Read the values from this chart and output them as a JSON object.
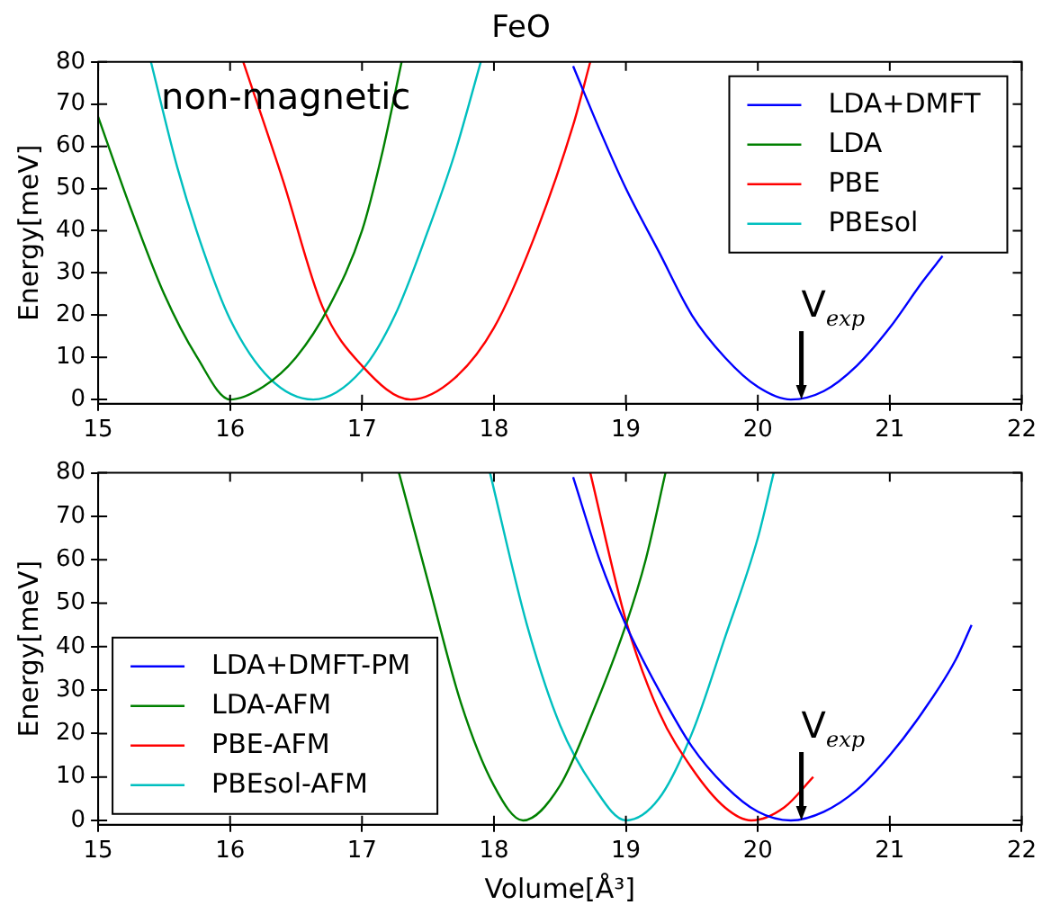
{
  "chart_data": [
    {
      "type": "line",
      "title": "FeO",
      "ylabel": "Energy[meV]",
      "xlim": [
        15,
        22
      ],
      "xticks": [
        15,
        16,
        17,
        18,
        19,
        20,
        21,
        22
      ],
      "ylim": [
        -1,
        80
      ],
      "yticks": [
        0,
        10,
        20,
        30,
        40,
        50,
        60,
        70,
        80
      ],
      "legend": "top right",
      "marker": "none",
      "annotations": [
        "non-magnetic",
        {
          "text": "V$_{exp}$",
          "x": 20.33,
          "y": 0
        }
      ],
      "series": [
        {
          "name": "LDA+DMFT",
          "color": "#0000ff",
          "x": [
            18.6,
            18.8,
            19,
            19.25,
            19.5,
            19.75,
            20,
            20.25,
            20.5,
            20.75,
            21,
            21.25,
            21.4
          ],
          "values": [
            79,
            64,
            50,
            35,
            20,
            10,
            3,
            0,
            2,
            8,
            17,
            28,
            34
          ]
        },
        {
          "name": "LDA",
          "color": "#008000",
          "x": [
            15,
            15.25,
            15.5,
            15.75,
            16,
            16.25,
            16.5,
            16.75,
            17,
            17.15,
            17.3
          ],
          "values": [
            67,
            45,
            25,
            10,
            0,
            3,
            10,
            22,
            40,
            58,
            80
          ]
        },
        {
          "name": "PBE",
          "color": "#ff0000",
          "x": [
            16.1,
            16.4,
            16.7,
            17,
            17.37,
            17.7,
            18,
            18.3,
            18.6,
            18.73
          ],
          "values": [
            80,
            52,
            22,
            8,
            0,
            5,
            17,
            38,
            65,
            80
          ]
        },
        {
          "name": "PBEsol",
          "color": "#00bfbf",
          "x": [
            15.4,
            15.6,
            15.8,
            16,
            16.3,
            16.63,
            17,
            17.25,
            17.5,
            17.7,
            17.9
          ],
          "values": [
            80,
            55,
            35,
            19,
            5,
            0,
            7,
            20,
            40,
            58,
            80
          ]
        }
      ]
    },
    {
      "type": "line",
      "xlabel": "Volume[Å³]",
      "ylabel": "Energy[meV]",
      "xlim": [
        15,
        22
      ],
      "xticks": [
        15,
        16,
        17,
        18,
        19,
        20,
        21,
        22
      ],
      "ylim": [
        -1,
        80
      ],
      "yticks": [
        0,
        10,
        20,
        30,
        40,
        50,
        60,
        70,
        80
      ],
      "legend": "bottom left",
      "marker": "none",
      "annotations": [
        {
          "text": "V$_{exp}$",
          "x": 20.33,
          "y": 0
        }
      ],
      "series": [
        {
          "name": "LDA+DMFT-PM",
          "color": "#0000ff",
          "x": [
            18.6,
            18.8,
            19,
            19.25,
            19.5,
            19.75,
            20,
            20.25,
            20.5,
            20.75,
            21,
            21.25,
            21.5,
            21.62
          ],
          "values": [
            79,
            60,
            45,
            30,
            17,
            8,
            2,
            0,
            2,
            7,
            15,
            25,
            37,
            45
          ]
        },
        {
          "name": "LDA-AFM",
          "color": "#008000",
          "x": [
            17.28,
            17.5,
            17.75,
            18,
            18.22,
            18.5,
            18.75,
            19,
            19.15,
            19.3
          ],
          "values": [
            80,
            55,
            27,
            8,
            0,
            8,
            25,
            45,
            60,
            80
          ]
        },
        {
          "name": "PBE-AFM",
          "color": "#ff0000",
          "x": [
            18.73,
            19,
            19.25,
            19.5,
            19.75,
            19.95,
            20.2,
            20.42
          ],
          "values": [
            80,
            46,
            25,
            12,
            3,
            0,
            3,
            10
          ]
        },
        {
          "name": "PBEsol-AFM",
          "color": "#00bfbf",
          "x": [
            17.97,
            18.25,
            18.5,
            18.75,
            19,
            19.25,
            19.5,
            19.75,
            20,
            20.12
          ],
          "values": [
            80,
            45,
            22,
            8,
            0,
            5,
            20,
            42,
            65,
            80
          ]
        }
      ]
    }
  ]
}
